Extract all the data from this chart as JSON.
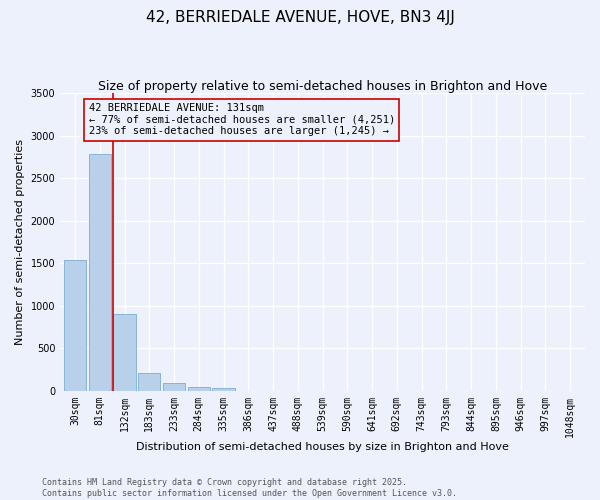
{
  "title": "42, BERRIEDALE AVENUE, HOVE, BN3 4JJ",
  "subtitle": "Size of property relative to semi-detached houses in Brighton and Hove",
  "xlabel": "Distribution of semi-detached houses by size in Brighton and Hove",
  "ylabel": "Number of semi-detached properties",
  "categories": [
    "30sqm",
    "81sqm",
    "132sqm",
    "183sqm",
    "233sqm",
    "284sqm",
    "335sqm",
    "386sqm",
    "437sqm",
    "488sqm",
    "539sqm",
    "590sqm",
    "641sqm",
    "692sqm",
    "743sqm",
    "793sqm",
    "844sqm",
    "895sqm",
    "946sqm",
    "997sqm",
    "1048sqm"
  ],
  "values": [
    1540,
    2780,
    900,
    215,
    95,
    50,
    30,
    0,
    0,
    0,
    0,
    0,
    0,
    0,
    0,
    0,
    0,
    0,
    0,
    0,
    0
  ],
  "bar_color": "#b8d0ea",
  "bar_edge_color": "#7baed4",
  "highlight_index": 2,
  "highlight_line_color": "#cc0000",
  "annotation_text": "42 BERRIEDALE AVENUE: 131sqm\n← 77% of semi-detached houses are smaller (4,251)\n23% of semi-detached houses are larger (1,245) →",
  "annotation_box_edgecolor": "#cc0000",
  "ylim": [
    0,
    3500
  ],
  "yticks": [
    0,
    500,
    1000,
    1500,
    2000,
    2500,
    3000,
    3500
  ],
  "footer": "Contains HM Land Registry data © Crown copyright and database right 2025.\nContains public sector information licensed under the Open Government Licence v3.0.",
  "bg_color": "#edf1fb",
  "grid_color": "#ffffff",
  "title_fontsize": 11,
  "subtitle_fontsize": 9,
  "axis_label_fontsize": 8,
  "tick_fontsize": 7,
  "annotation_fontsize": 7.5,
  "footer_fontsize": 6
}
